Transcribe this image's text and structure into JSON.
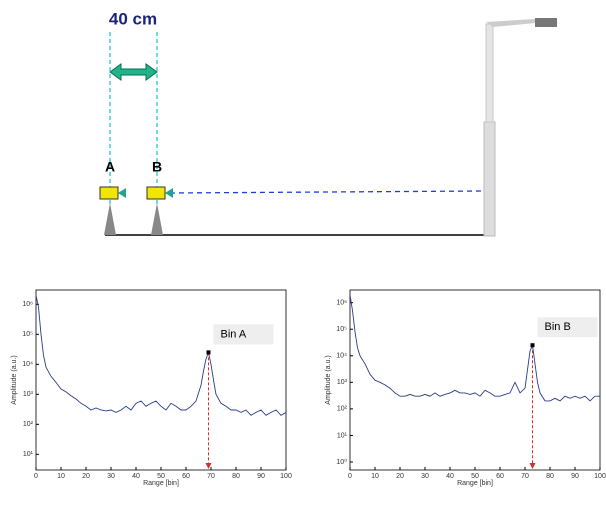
{
  "diagram": {
    "distance_label": "40 cm",
    "sensor_a": "A",
    "sensor_b": "B"
  },
  "chart_data": [
    {
      "type": "line",
      "log_y": true,
      "ylabel": "Amplitude (a.u.)",
      "xlabel": "Range [bin]",
      "annotation": "Bin A",
      "annotation_index": 38,
      "xlim": [
        0,
        100
      ],
      "xticks": [
        0,
        10,
        20,
        30,
        40,
        50,
        60,
        70,
        80,
        90,
        100
      ],
      "ylim": [
        3,
        3000000
      ],
      "yticks": [
        {
          "value": 10,
          "label": "10¹"
        },
        {
          "value": 100,
          "label": "10²"
        },
        {
          "value": 1000,
          "label": "10³"
        },
        {
          "value": 10000,
          "label": "10⁴"
        },
        {
          "value": 100000,
          "label": "10⁵"
        },
        {
          "value": 1000000,
          "label": "10⁶"
        }
      ],
      "color": "#2b3a8c",
      "x": [
        0,
        1,
        2,
        3,
        4,
        6,
        8,
        10,
        12,
        14,
        16,
        18,
        20,
        22,
        24,
        26,
        28,
        30,
        32,
        34,
        36,
        38,
        40,
        42,
        44,
        46,
        48,
        50,
        52,
        54,
        56,
        58,
        60,
        62,
        64,
        66,
        67,
        68,
        69,
        70,
        71,
        72,
        74,
        76,
        78,
        80,
        82,
        84,
        86,
        88,
        90,
        92,
        94,
        96,
        98,
        100
      ],
      "values": [
        2000000,
        800000,
        100000,
        20000,
        8000,
        4000,
        2500,
        1500,
        1200,
        900,
        700,
        500,
        400,
        300,
        350,
        300,
        280,
        300,
        250,
        300,
        400,
        300,
        500,
        600,
        400,
        500,
        600,
        400,
        300,
        500,
        400,
        300,
        300,
        400,
        600,
        2000,
        6000,
        15000,
        25000,
        10000,
        3000,
        1000,
        500,
        400,
        300,
        300,
        250,
        300,
        200,
        250,
        300,
        200,
        250,
        300,
        200,
        250
      ]
    },
    {
      "type": "line",
      "log_y": true,
      "ylabel": "Amplitude (a.u.)",
      "xlabel": "Range [bin]",
      "annotation": "Bin B",
      "annotation_index": 40,
      "xlim": [
        0,
        100
      ],
      "xticks": [
        0,
        10,
        20,
        30,
        40,
        50,
        60,
        70,
        80,
        90,
        100
      ],
      "ylim": [
        0.5,
        3000000
      ],
      "yticks": [
        {
          "value": 1,
          "label": "10⁰"
        },
        {
          "value": 10,
          "label": "10¹"
        },
        {
          "value": 100,
          "label": "10²"
        },
        {
          "value": 1000,
          "label": "10³"
        },
        {
          "value": 10000,
          "label": "10⁴"
        },
        {
          "value": 100000,
          "label": "10⁵"
        },
        {
          "value": 1000000,
          "label": "10⁶"
        }
      ],
      "color": "#2b3a8c",
      "x": [
        0,
        1,
        2,
        3,
        4,
        6,
        8,
        10,
        12,
        14,
        16,
        18,
        20,
        22,
        24,
        26,
        28,
        30,
        32,
        34,
        36,
        38,
        40,
        42,
        44,
        46,
        48,
        50,
        52,
        54,
        56,
        58,
        60,
        62,
        64,
        66,
        68,
        70,
        71,
        72,
        73,
        74,
        75,
        76,
        78,
        80,
        82,
        84,
        86,
        88,
        90,
        92,
        94,
        96,
        98,
        100
      ],
      "values": [
        2000000,
        500000,
        80000,
        20000,
        10000,
        5000,
        2000,
        1200,
        1000,
        800,
        600,
        400,
        300,
        300,
        350,
        300,
        300,
        350,
        300,
        400,
        300,
        350,
        400,
        500,
        400,
        400,
        350,
        400,
        300,
        500,
        400,
        300,
        300,
        350,
        400,
        1000,
        400,
        600,
        3000,
        15000,
        25000,
        5000,
        1000,
        400,
        200,
        200,
        250,
        200,
        300,
        250,
        300,
        250,
        300,
        200,
        300,
        300
      ]
    }
  ]
}
